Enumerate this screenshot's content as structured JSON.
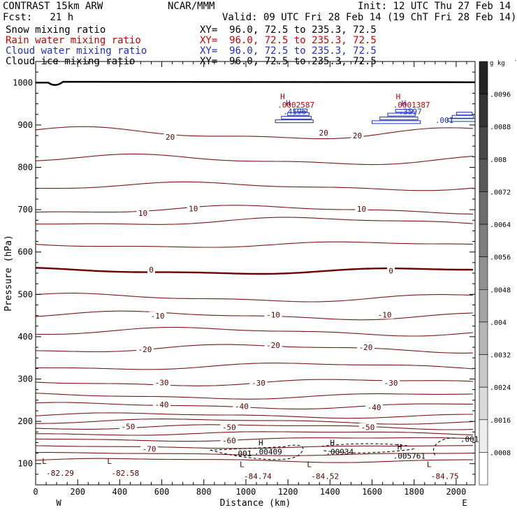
{
  "header": {
    "model": "CONTRAST 15km ARW",
    "org": "NCAR/MMM",
    "init": "Init: 12 UTC Thu 27 Feb 14",
    "fcst": "Fcst:   21 h",
    "valid": "Valid: 09 UTC Fri 28 Feb 14 (19 ChT Fri 28 Feb 14)",
    "fields": [
      {
        "label": "Snow mixing ratio",
        "xy": "XY=  96.0, 72.5 to 235.3, 72.5",
        "color": "#000000"
      },
      {
        "label": "Rain water mixing ratio",
        "xy": "XY=  96.0, 72.5 to 235.3, 72.5",
        "color": "#cc0000"
      },
      {
        "label": "Cloud water mixing ratio",
        "xy": "XY=  96.0, 72.5 to 235.3, 72.5",
        "color": "#1f2fc7"
      },
      {
        "label": "Cloud ice mixing ratio",
        "xy": "XY=  96.0, 72.5 to 235.3, 72.5",
        "color": "#000000"
      }
    ]
  },
  "chart_data": {
    "type": "line",
    "xlabel": "Distance (km)",
    "ylabel": "Pressure (hPa)",
    "xlim": [
      0,
      2090
    ],
    "ylim": [
      1050,
      50
    ],
    "x_ticks": [
      0,
      200,
      400,
      600,
      800,
      1000,
      1200,
      1400,
      1600,
      1800,
      2000
    ],
    "y_ticks": [
      100,
      200,
      300,
      400,
      500,
      600,
      700,
      800,
      900,
      1000
    ],
    "x_end_labels": {
      "left": "W",
      "right": "E"
    },
    "colorbar": {
      "unit": "g kg",
      "unit_sup": "-1",
      "ticks": [
        ".0096",
        ".0088",
        ".008",
        ".0072",
        ".0064",
        ".0056",
        ".0048",
        ".004",
        ".0032",
        ".0024",
        ".0016",
        ".0008"
      ]
    },
    "temperature_contours": {
      "color": "#7a1818",
      "zero_color": "#6b0000",
      "lines": [
        {
          "p0": 108,
          "amp": 4,
          "label": ""
        },
        {
          "p0": 123,
          "amp": 3,
          "label": ""
        },
        {
          "p0": 140,
          "amp": 3,
          "label": "-70"
        },
        {
          "p0": 158,
          "amp": 4,
          "label": "-60"
        },
        {
          "p0": 172,
          "amp": 4,
          "label": ""
        },
        {
          "p0": 187,
          "amp": 5,
          "label": "-50"
        },
        {
          "p0": 200,
          "amp": 5,
          "label": ""
        },
        {
          "p0": 214,
          "amp": 5,
          "label": ""
        },
        {
          "p0": 237,
          "amp": 6,
          "label": "-40"
        },
        {
          "p0": 260,
          "amp": 6,
          "label": ""
        },
        {
          "p0": 292,
          "amp": 7,
          "label": "-30"
        },
        {
          "p0": 330,
          "amp": 7,
          "label": ""
        },
        {
          "p0": 372,
          "amp": 8,
          "label": "-20"
        },
        {
          "p0": 412,
          "amp": 8,
          "label": ""
        },
        {
          "p0": 450,
          "amp": 8,
          "label": "-10"
        },
        {
          "p0": 492,
          "amp": 8,
          "label": ""
        },
        {
          "p0": 555,
          "amp": 6,
          "label": "0"
        },
        {
          "p0": 617,
          "amp": 6,
          "label": ""
        },
        {
          "p0": 672,
          "amp": 8,
          "label": ""
        },
        {
          "p0": 700,
          "amp": 8,
          "label": "10"
        },
        {
          "p0": 755,
          "amp": 8,
          "label": ""
        },
        {
          "p0": 818,
          "amp": 10,
          "label": ""
        },
        {
          "p0": 880,
          "amp": 12,
          "label": "20"
        }
      ],
      "value_labels": [
        {
          "x": 540,
          "p": 135,
          "text": "-70"
        },
        {
          "x": 920,
          "p": 155,
          "text": "-60"
        },
        {
          "x": 440,
          "p": 188,
          "text": "-50"
        },
        {
          "x": 920,
          "p": 186,
          "text": "-50"
        },
        {
          "x": 1580,
          "p": 186,
          "text": "-50"
        },
        {
          "x": 600,
          "p": 240,
          "text": "-40"
        },
        {
          "x": 980,
          "p": 236,
          "text": "-40"
        },
        {
          "x": 1610,
          "p": 233,
          "text": "-40"
        },
        {
          "x": 600,
          "p": 292,
          "text": "-30"
        },
        {
          "x": 1060,
          "p": 291,
          "text": "-30"
        },
        {
          "x": 1690,
          "p": 291,
          "text": "-30"
        },
        {
          "x": 520,
          "p": 370,
          "text": "-20"
        },
        {
          "x": 1130,
          "p": 380,
          "text": "-20"
        },
        {
          "x": 1570,
          "p": 375,
          "text": "-20"
        },
        {
          "x": 580,
          "p": 449,
          "text": "-10"
        },
        {
          "x": 1130,
          "p": 452,
          "text": "-10"
        },
        {
          "x": 1660,
          "p": 452,
          "text": "-10"
        },
        {
          "x": 550,
          "p": 558,
          "text": "0"
        },
        {
          "x": 1690,
          "p": 556,
          "text": "0"
        },
        {
          "x": 510,
          "p": 692,
          "text": "10"
        },
        {
          "x": 750,
          "p": 703,
          "text": "10"
        },
        {
          "x": 1550,
          "p": 702,
          "text": "10"
        },
        {
          "x": 640,
          "p": 872,
          "text": "20"
        },
        {
          "x": 1370,
          "p": 882,
          "text": "20"
        },
        {
          "x": 1530,
          "p": 875,
          "text": "20"
        }
      ],
      "extrema": [
        {
          "x": 130,
          "p": 90,
          "letter": "L",
          "value": "-82.29"
        },
        {
          "x": 440,
          "p": 90,
          "letter": "L",
          "value": "-82.58"
        },
        {
          "x": 1070,
          "p": 82,
          "letter": "L",
          "value": "-84.74"
        },
        {
          "x": 1390,
          "p": 82,
          "letter": "L",
          "value": "-84.52"
        },
        {
          "x": 1960,
          "p": 82,
          "letter": "L",
          "value": "-84.75"
        }
      ]
    },
    "ice_annotations": [
      {
        "x": 940,
        "p": 124,
        "text": ".001"
      },
      {
        "x": 1060,
        "p": 137,
        "letter": "H",
        "value": ".00409"
      },
      {
        "x": 1400,
        "p": 137,
        "letter": "H",
        "value": ".00934"
      },
      {
        "x": 1720,
        "p": 127,
        "letter": "H",
        "value": ".005761"
      },
      {
        "x": 2020,
        "p": 158,
        "text": ".001"
      }
    ],
    "cloud_water_annotations": [
      {
        "x": 1190,
        "p": 935,
        "letter": "H",
        "value": ".4196"
      },
      {
        "x": 1740,
        "p": 935,
        "letter": "H",
        "value": ".3597"
      },
      {
        "x": 1900,
        "p": 911,
        "text": ".001"
      }
    ],
    "rain_annotations": [
      {
        "x": 1190,
        "p": 958,
        "letter": "H",
        "value": ".0002587"
      },
      {
        "x": 1740,
        "p": 958,
        "letter": "H",
        "value": ".0001387"
      }
    ]
  }
}
